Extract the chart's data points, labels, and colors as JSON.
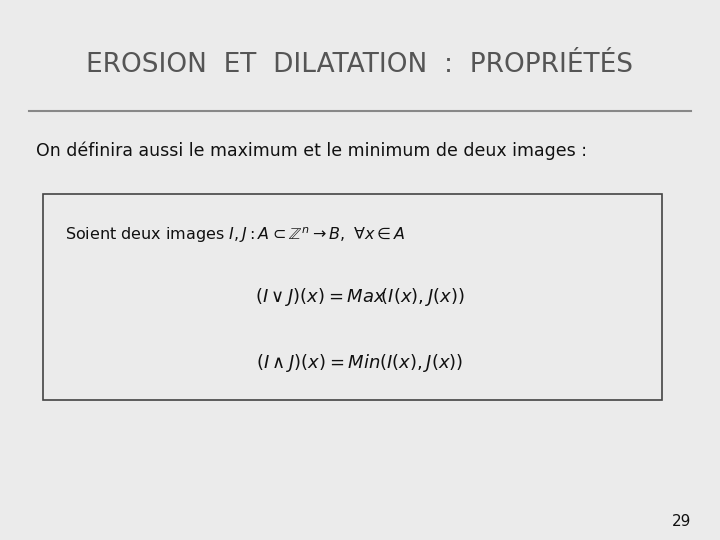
{
  "title": "EROSION  ET  DILATATION  :  PROPRIÉTÉS",
  "subtitle": "On définira aussi le maximum et le minimum de deux images :",
  "page_number": "29",
  "bg_color": "#ebebeb",
  "title_color": "#555555",
  "text_color": "#111111",
  "box_edge_color": "#444444",
  "line_color": "#888888"
}
